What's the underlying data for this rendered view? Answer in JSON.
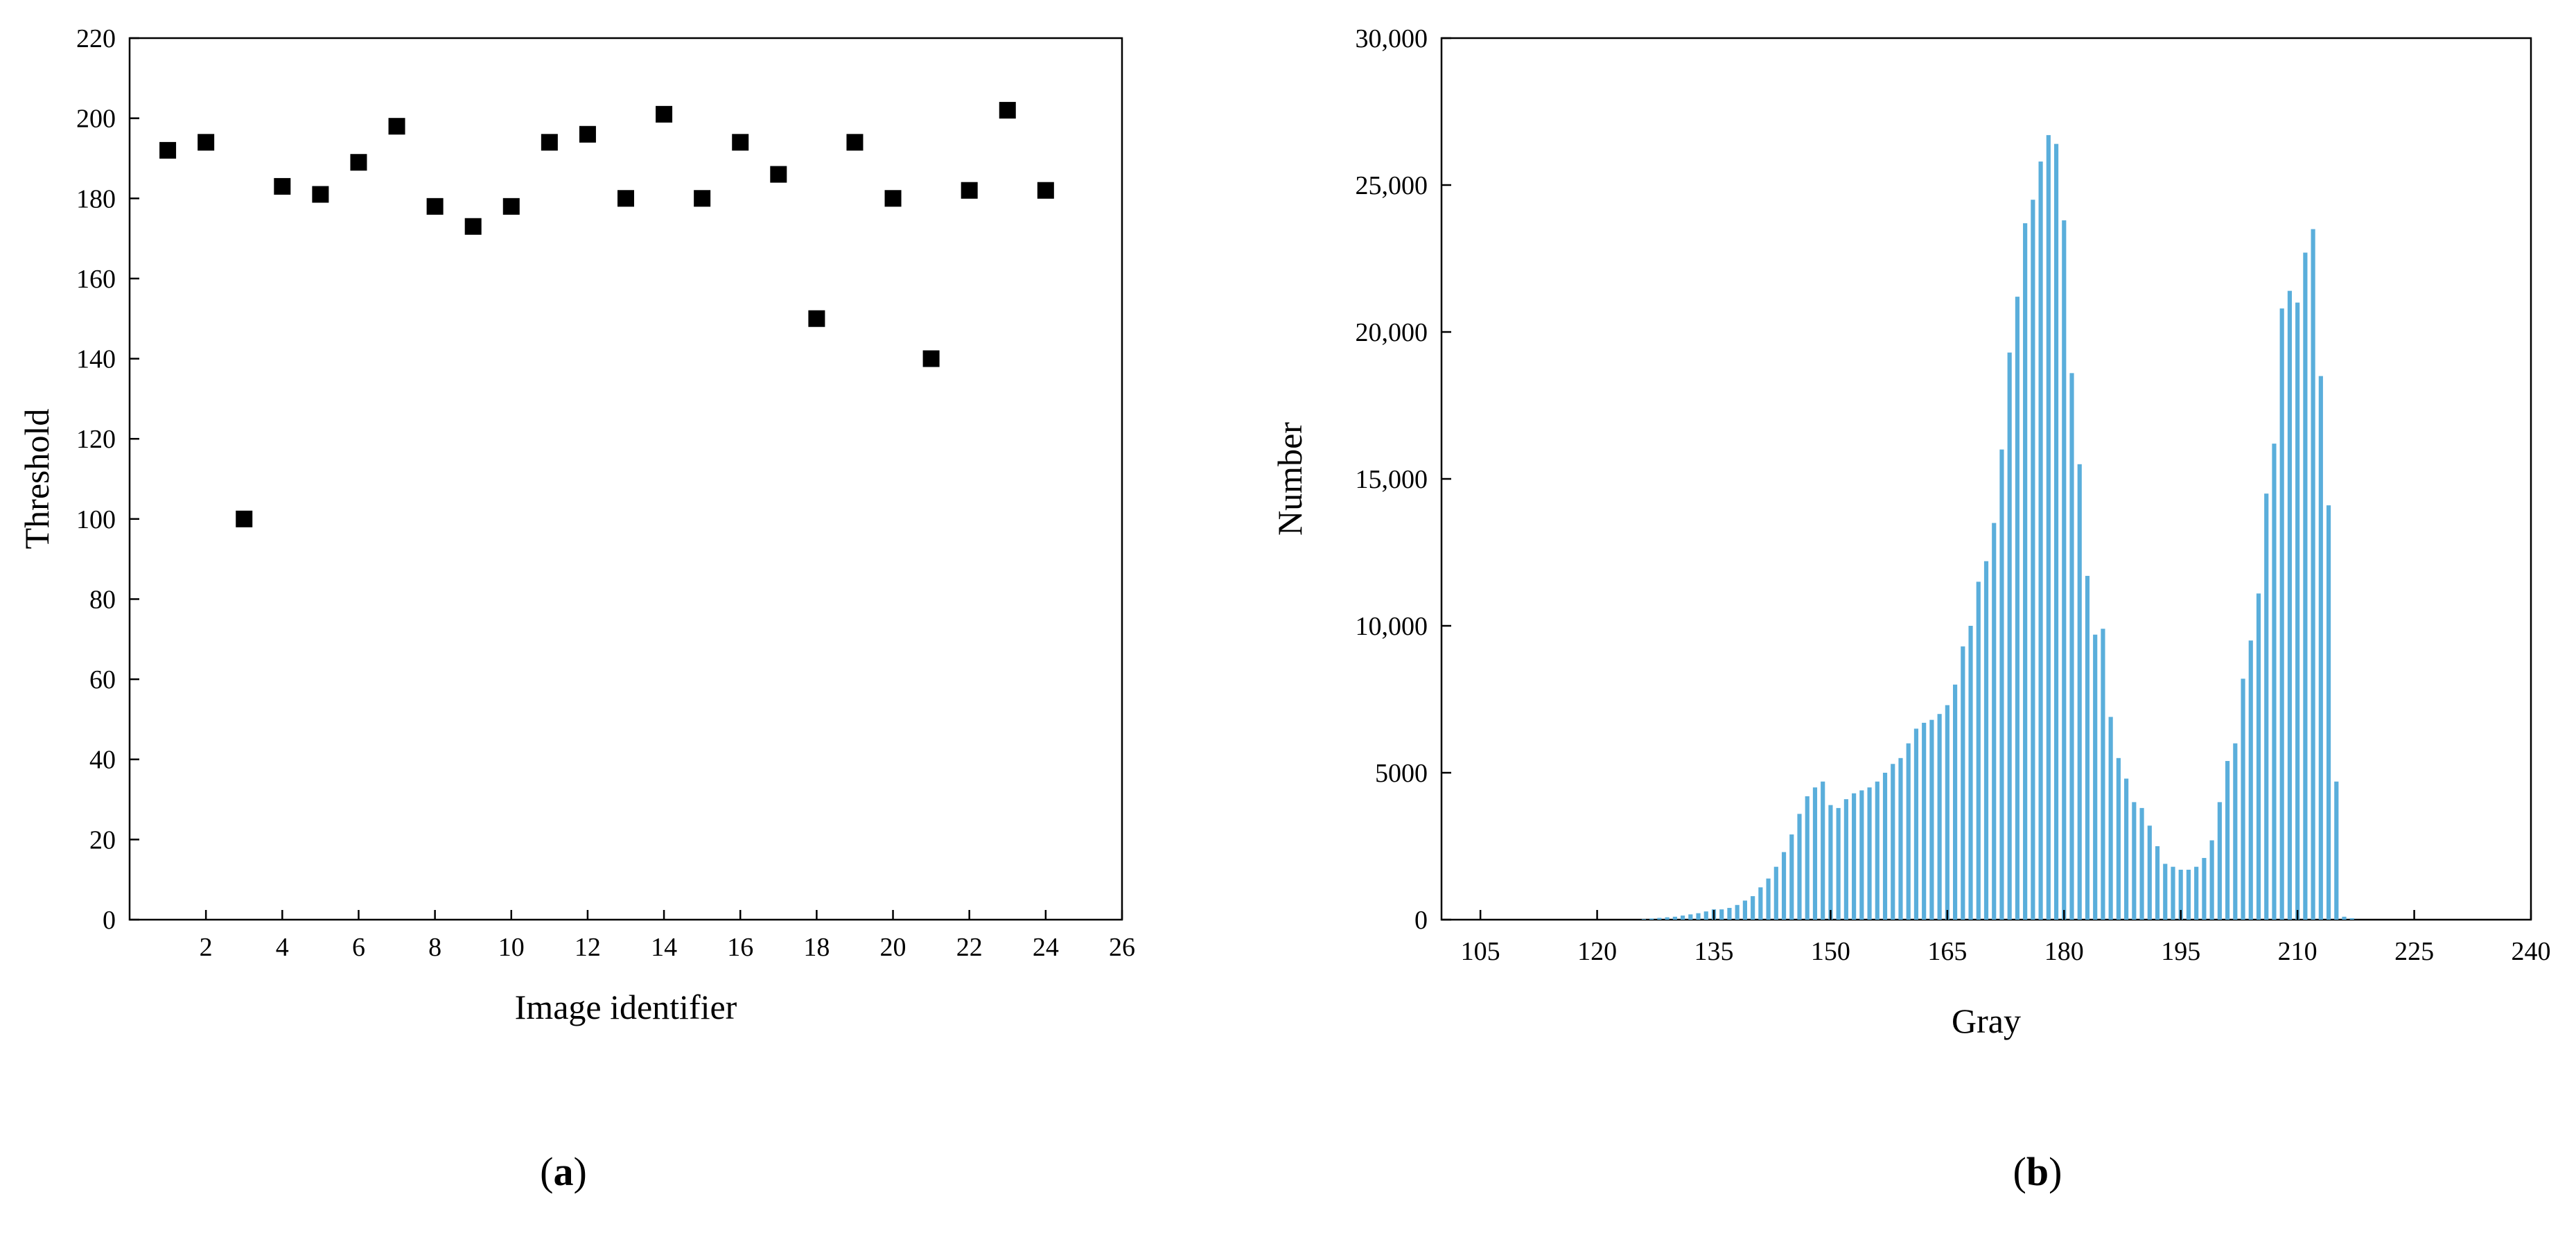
{
  "chart_data": [
    {
      "type": "scatter",
      "panel_label": "a",
      "xlabel": "Image identifier",
      "ylabel": "Threshold",
      "xlim": [
        0,
        26
      ],
      "ylim": [
        0,
        220
      ],
      "xticks": [
        2,
        4,
        6,
        8,
        10,
        12,
        14,
        16,
        18,
        20,
        22,
        24,
        26
      ],
      "yticks": [
        0,
        20,
        40,
        60,
        80,
        100,
        120,
        140,
        160,
        180,
        200,
        220
      ],
      "marker": "square",
      "color": "#000000",
      "grid": false,
      "x": [
        1,
        2,
        3,
        4,
        5,
        6,
        7,
        8,
        9,
        10,
        11,
        12,
        13,
        14,
        15,
        16,
        17,
        18,
        19,
        20,
        21,
        22,
        23,
        24
      ],
      "y": [
        192,
        194,
        100,
        183,
        181,
        189,
        198,
        178,
        173,
        178,
        194,
        196,
        180,
        201,
        180,
        194,
        186,
        150,
        194,
        180,
        140,
        182,
        202,
        182
      ]
    },
    {
      "type": "bar",
      "panel_label": "b",
      "xlabel": "Gray",
      "ylabel": "Number",
      "xlim": [
        100,
        240
      ],
      "ylim": [
        0,
        30000
      ],
      "xticks": [
        105,
        120,
        135,
        150,
        165,
        180,
        195,
        210,
        225,
        240
      ],
      "yticks": [
        0,
        5000,
        10000,
        15000,
        20000,
        25000,
        30000
      ],
      "ytick_labels": [
        "0",
        "5000",
        "10,000",
        "15,000",
        "20,000",
        "25,000",
        "30,000"
      ],
      "color": "#5aaedb",
      "grid": false,
      "x": [
        126,
        127,
        128,
        129,
        130,
        131,
        132,
        133,
        134,
        135,
        136,
        137,
        138,
        139,
        140,
        141,
        142,
        143,
        144,
        145,
        146,
        147,
        148,
        149,
        150,
        151,
        152,
        153,
        154,
        155,
        156,
        157,
        158,
        159,
        160,
        161,
        162,
        163,
        164,
        165,
        166,
        167,
        168,
        169,
        170,
        171,
        172,
        173,
        174,
        175,
        176,
        177,
        178,
        179,
        180,
        181,
        182,
        183,
        184,
        185,
        186,
        187,
        188,
        189,
        190,
        191,
        192,
        193,
        194,
        195,
        196,
        197,
        198,
        199,
        200,
        201,
        202,
        203,
        204,
        205,
        206,
        207,
        208,
        209,
        210,
        211,
        212,
        213,
        214,
        215,
        216,
        217
      ],
      "values": [
        20,
        40,
        60,
        80,
        100,
        140,
        180,
        220,
        280,
        350,
        350,
        400,
        500,
        650,
        800,
        1100,
        1400,
        1800,
        2300,
        2900,
        3600,
        4200,
        4500,
        4700,
        3900,
        3800,
        4100,
        4300,
        4400,
        4500,
        4700,
        5000,
        5300,
        5500,
        6000,
        6500,
        6700,
        6800,
        7000,
        7300,
        8000,
        9300,
        10000,
        11500,
        12200,
        13500,
        16000,
        19300,
        21200,
        23700,
        24500,
        25800,
        26700,
        26400,
        23800,
        18600,
        15500,
        11700,
        9700,
        9900,
        6900,
        5500,
        4800,
        4000,
        3800,
        3200,
        2500,
        1900,
        1800,
        1700,
        1700,
        1800,
        2100,
        2700,
        4000,
        5400,
        6000,
        8200,
        9500,
        11100,
        14500,
        16200,
        20800,
        21400,
        21000,
        22700,
        23500,
        18500,
        14100,
        4700,
        100,
        50
      ]
    }
  ]
}
